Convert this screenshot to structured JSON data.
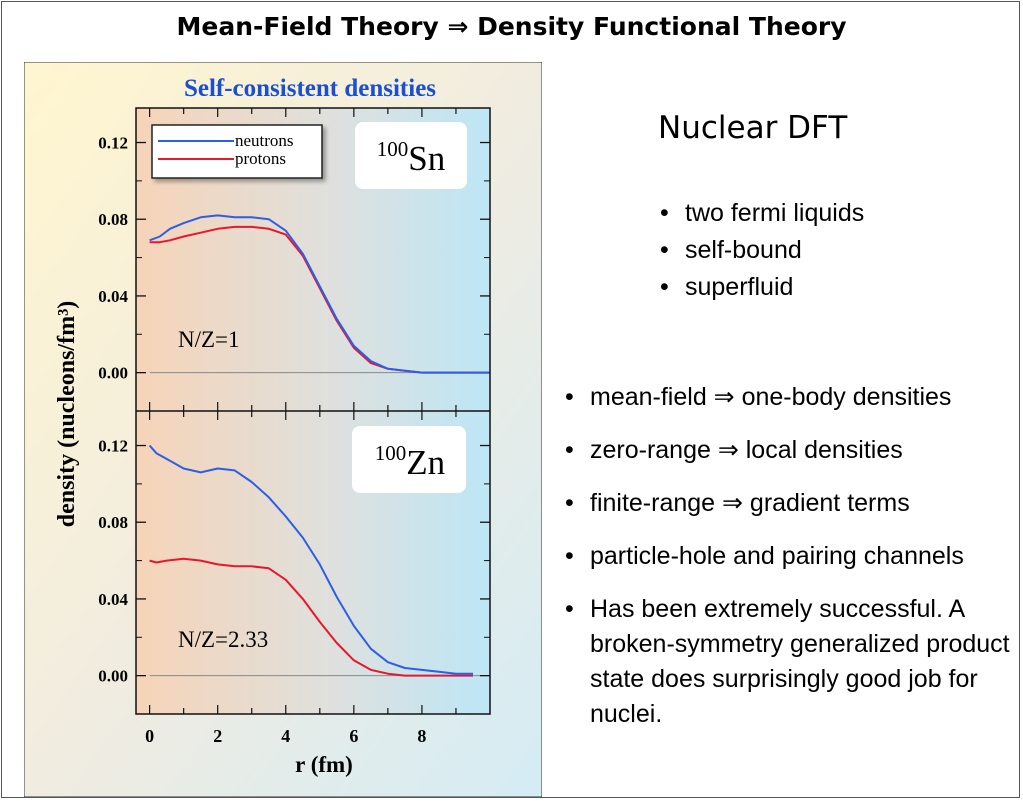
{
  "slide": {
    "title": "Mean-Field Theory ⇒ Density Functional Theory",
    "heading": "Nuclear DFT",
    "upper_bullets": [
      "two fermi liquids",
      "self-bound",
      "superfluid"
    ],
    "lower_bullets": [
      "mean-field  ⇒ one-body densities",
      "zero-range ⇒ local densities",
      "finite-range ⇒ gradient terms",
      "particle-hole and pairing channels",
      "Has been extremely successful. A broken-symmetry generalized product state does surprisingly good job for nuclei."
    ]
  },
  "colors": {
    "neutrons": "#2c5ee8",
    "protons": "#e8172e",
    "title_blue": "#1a4fd0"
  },
  "chart_data": [
    {
      "type": "line",
      "title": "Self-consistent densities",
      "nucleus_mass": "100",
      "nucleus_symbol": "Sn",
      "ratio_label": "N/Z=1",
      "xlabel": "r (fm)",
      "ylabel": "density (nucleons/fm³)",
      "xlim": [
        -0.4,
        10.0
      ],
      "ylim": [
        -0.02,
        0.138
      ],
      "xticks": [
        0,
        2,
        4,
        6,
        8
      ],
      "yticks": [
        "0.00",
        "0.04",
        "0.08",
        "0.12"
      ],
      "legend": {
        "placement": "top-left",
        "entries": [
          "neutrons",
          "protons"
        ]
      },
      "series": [
        {
          "name": "neutrons",
          "color": "#2c5ee8",
          "x": [
            0,
            0.3,
            0.6,
            1.0,
            1.5,
            2.0,
            2.5,
            3.0,
            3.5,
            4.0,
            4.5,
            5.0,
            5.5,
            6.0,
            6.5,
            7.0,
            7.5,
            8.0,
            9.0,
            10.0
          ],
          "y": [
            0.069,
            0.071,
            0.075,
            0.078,
            0.081,
            0.082,
            0.081,
            0.081,
            0.08,
            0.074,
            0.062,
            0.045,
            0.028,
            0.014,
            0.006,
            0.002,
            0.001,
            0.0,
            0.0,
            0.0
          ]
        },
        {
          "name": "protons",
          "color": "#e8172e",
          "x": [
            0,
            0.3,
            0.6,
            1.0,
            1.5,
            2.0,
            2.5,
            3.0,
            3.5,
            4.0,
            4.5,
            5.0,
            5.5,
            6.0,
            6.5,
            7.0,
            7.5,
            8.0,
            9.0,
            10.0
          ],
          "y": [
            0.068,
            0.068,
            0.069,
            0.071,
            0.073,
            0.075,
            0.076,
            0.076,
            0.075,
            0.072,
            0.061,
            0.044,
            0.027,
            0.013,
            0.005,
            0.002,
            0.001,
            0.0,
            0.0,
            0.0
          ]
        }
      ]
    },
    {
      "type": "line",
      "nucleus_mass": "100",
      "nucleus_symbol": "Zn",
      "ratio_label": "N/Z=2.33",
      "xlabel": "r (fm)",
      "ylabel": "density (nucleons/fm³)",
      "xlim": [
        -0.4,
        10.0
      ],
      "ylim": [
        -0.02,
        0.138
      ],
      "xticks": [
        0,
        2,
        4,
        6,
        8
      ],
      "yticks": [
        "0.00",
        "0.04",
        "0.08",
        "0.12"
      ],
      "series": [
        {
          "name": "neutrons",
          "color": "#2c5ee8",
          "x": [
            0,
            0.2,
            0.5,
            1.0,
            1.5,
            2.0,
            2.5,
            3.0,
            3.5,
            4.0,
            4.5,
            5.0,
            5.5,
            6.0,
            6.5,
            7.0,
            7.5,
            8.0,
            8.5,
            9.0,
            9.5
          ],
          "y": [
            0.12,
            0.116,
            0.113,
            0.108,
            0.106,
            0.108,
            0.107,
            0.101,
            0.093,
            0.083,
            0.072,
            0.058,
            0.041,
            0.026,
            0.014,
            0.007,
            0.004,
            0.003,
            0.002,
            0.001,
            0.001
          ]
        },
        {
          "name": "protons",
          "color": "#e8172e",
          "x": [
            0,
            0.2,
            0.5,
            1.0,
            1.5,
            2.0,
            2.5,
            3.0,
            3.5,
            4.0,
            4.5,
            5.0,
            5.5,
            6.0,
            6.5,
            7.0,
            7.5,
            8.0,
            8.5,
            9.0,
            9.5
          ],
          "y": [
            0.06,
            0.059,
            0.06,
            0.061,
            0.06,
            0.058,
            0.057,
            0.057,
            0.056,
            0.05,
            0.04,
            0.028,
            0.017,
            0.008,
            0.003,
            0.001,
            0.0,
            0.0,
            0.0,
            0.0,
            0.0
          ]
        }
      ]
    }
  ]
}
